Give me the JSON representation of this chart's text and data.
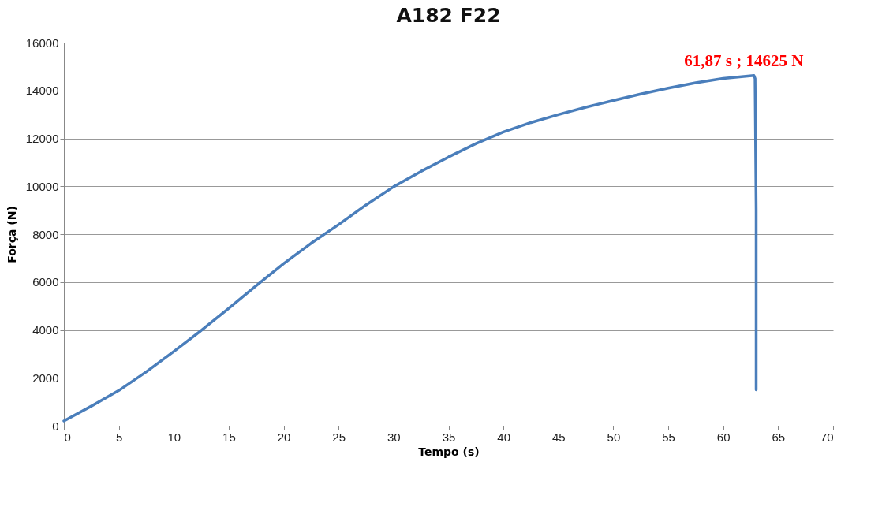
{
  "chart_data": {
    "type": "line",
    "title": "A182 F22",
    "xlabel": "Tempo (s)",
    "ylabel": "Força (N)",
    "xlim": [
      0,
      70
    ],
    "xticks": [
      0,
      5,
      10,
      15,
      20,
      25,
      30,
      35,
      40,
      45,
      50,
      55,
      60,
      65,
      70
    ],
    "ylim": [
      0,
      16000
    ],
    "yticks": [
      0,
      2000,
      4000,
      6000,
      8000,
      10000,
      12000,
      14000,
      16000
    ],
    "grid": "y",
    "marker": "none",
    "line_style": "solid",
    "series": [
      {
        "color": "#4a7ebb",
        "x": [
          0,
          2.5,
          5,
          7.5,
          10,
          12.5,
          15,
          17.5,
          20,
          22.5,
          25,
          27.5,
          30,
          32.5,
          35,
          37.5,
          40,
          42.5,
          45,
          47.5,
          50,
          52.5,
          55,
          57.5,
          60,
          62.8,
          62.9,
          63,
          63
        ],
        "values": [
          200,
          820,
          1470,
          2250,
          3100,
          3980,
          4900,
          5850,
          6770,
          7620,
          8400,
          9220,
          9980,
          10620,
          11220,
          11780,
          12270,
          12660,
          12990,
          13300,
          13580,
          13850,
          14100,
          14320,
          14500,
          14625,
          14500,
          9000,
          1500
        ]
      }
    ],
    "annotations": [
      {
        "text": "61,87 s ; 14625 N",
        "x": 61.87,
        "y": 14625
      }
    ]
  }
}
